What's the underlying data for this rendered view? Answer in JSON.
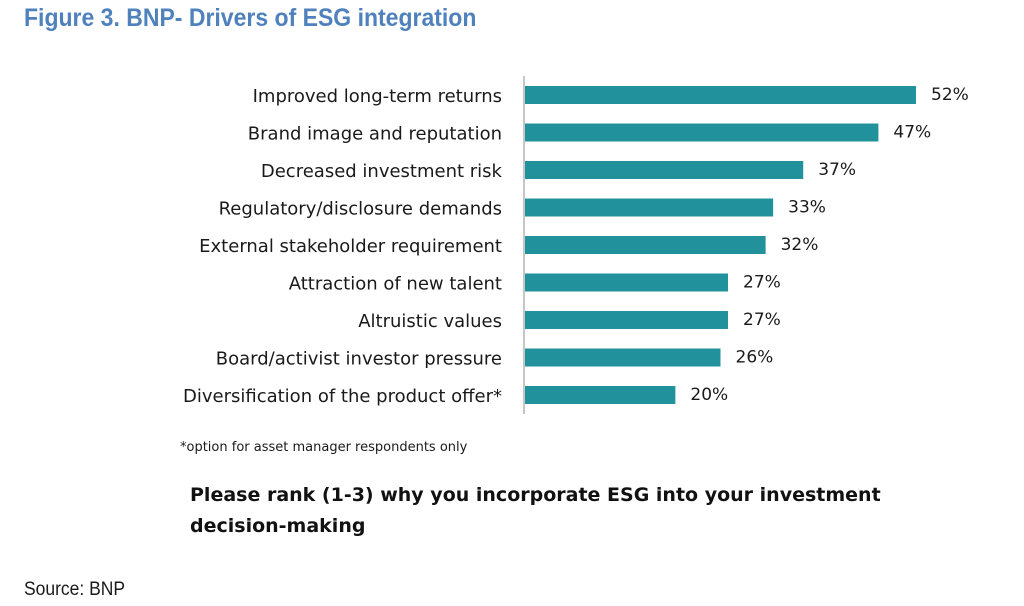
{
  "figure_title": "Figure 3. BNP- Drivers of ESG integration",
  "footnote": "*option for asset manager respondents only",
  "question": "Please rank (1-3) why you incorporate ESG into your investment decision-making",
  "source": "Source: BNP",
  "colors": {
    "bar": "#21919b",
    "title": "#4f81bd",
    "axis": "#8c8c8c"
  },
  "chart_data": {
    "type": "bar",
    "orientation": "horizontal",
    "title": "Figure 3. BNP- Drivers of ESG integration",
    "categories": [
      "Improved long-term returns",
      "Brand image and reputation",
      "Decreased investment risk",
      "Regulatory/disclosure demands",
      "External stakeholder requirement",
      "Attraction of new talent",
      "Altruistic values",
      "Board/activist investor pressure",
      "Diversification of the product offer*"
    ],
    "values": [
      52,
      47,
      37,
      33,
      32,
      27,
      27,
      26,
      20
    ],
    "value_labels": [
      "52%",
      "47%",
      "37%",
      "33%",
      "32%",
      "27%",
      "27%",
      "26%",
      "20%"
    ],
    "xlabel": "",
    "ylabel": "",
    "xlim": [
      0,
      52
    ],
    "grid": false,
    "legend": "none"
  }
}
